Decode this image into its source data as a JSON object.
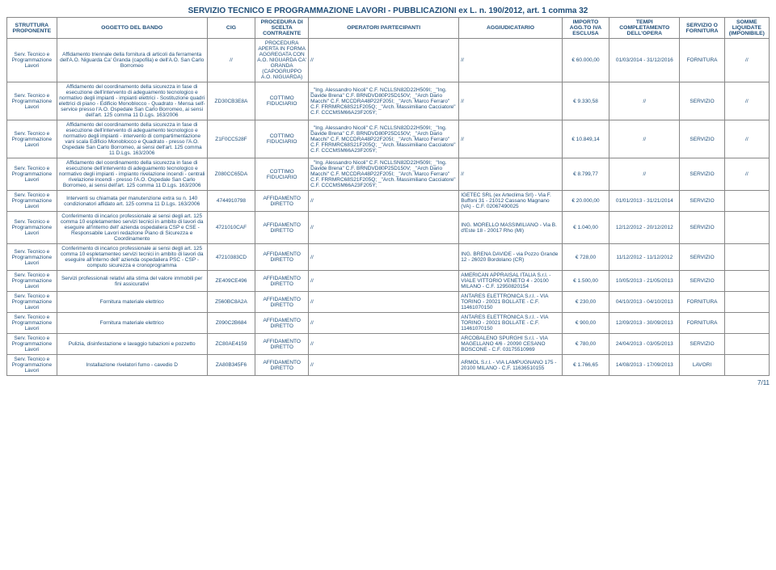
{
  "title": "SERVIZIO TECNICO E PROGRAMMAZIONE LAVORI - PUBBLICAZIONI ex L. n. 190/2012, art. 1 comma 32",
  "headers": {
    "struttura": "STRUTTURA PROPONENTE",
    "oggetto": "OGGETTO DEL BANDO",
    "cig": "CIG",
    "proc": "PROCEDURA DI SCELTA CONTRAENTE",
    "oper": "OPERATORI PARTECIPANTI",
    "agg": "AGGIUDICATARIO",
    "importo": "IMPORTO AGG.TO IVA ESCLUSA",
    "tempi": "TEMPI COMPLETAMENTO DELL'OPERA",
    "servizio": "SERVIZIO O FORNITURA",
    "somme": "SOMME LIQUIDATE (IMPONIBILE)"
  },
  "struttura_common": "Serv. Tecnico e Programmazione Lavori",
  "rows": [
    {
      "oggetto": "Affidamento triennale della fornitura di articoli da ferramenta dell'A.O. Niguarda Ca' Granda (capofila) e dell'A.O. San Carlo Borromeo",
      "cig": "//",
      "proc": "PROCEDURA APERTA IN FORMA AGGREGATA CON A.O. NIGUARDA CA' GRANDA (CAPOGRUPPO A.O. NIGUARDA)",
      "oper": "//",
      "agg": "//",
      "importo": "€ 60.000,00",
      "tempi": "01/03/2014 - 31/12/2016",
      "servizio": "FORNITURA",
      "somme": "//"
    },
    {
      "oggetto": "Affidamento del coordinamento della sicurezza in fase di esecuzione dell'intervento di adeguamento tecnologico e normativo degli impianti - impianti elettrici - Sostituzione quadri elettrici di piano - Edificio Monoblocco - Quadrato - Mensa self-service presso l'A.O. Ospedale San Carlo Borromeo, ai sensi dell'art. 125 comma 11 D.Lgs. 163/2006",
      "cig": "ZD30CB3E8A",
      "proc": "COTTIMO FIDUCIARIO",
      "oper": "_\"Ing. Alessandro  Nicoli\" C.F. NCLLSN82D22H509I; _\"Ing. Davide Brena\" C.F. BRNDVD80P25D150V; _\"Arch Dario Macchi\" C.F. MCCDRA48P22F205I; _\"Arch. Marco Ferraro\" C.F. FRRMRC68S21F205Q; _\"Arch. Massimiliano Cacciatore\" C.F. CCCMSM66A23F205Y;",
      "agg": "//",
      "importo": "€ 9.330,58",
      "tempi": "//",
      "servizio": "SERVIZIO",
      "somme": "//"
    },
    {
      "oggetto": "Affidamento del coordinamento della sicurezza in fase di esecuzione dell'intervento di adeguamento tecnologico e normativo degli impianti - intervento di compartimentazione vani scala Edificio Monoblocco e Quadrato - presso l'A.O. Ospedale San Carlo Borromeo, ai sensi dell'art. 125 comma 11 D.Lgs. 163/2006",
      "cig": "Z1F0CC528F",
      "proc": "COTTIMO FIDUCIARIO",
      "oper": "_\"Ing. Alessandro  Nicoli\" C.F. NCLLSN82D22H509I; _\"Ing. Davide Brena\" C.F. BRNDVD80P25D150V; _\"Arch Dario Macchi\" C.F. MCCDRA48P22F205I; _\"Arch. Marco Ferraro\" C.F. FRRMRC68S21F205Q; _\"Arch. Massimiliano Cacciatore\" C.F. CCCMSM66A23F205Y;",
      "agg": "//",
      "importo": "€ 10.849,14",
      "tempi": "//",
      "servizio": "SERVIZIO",
      "somme": "//"
    },
    {
      "oggetto": "Affidamento del coordinamento della sicurezza in fase di esecuzione dell'intervento di adeguamento tecnologico e normativo degli impianti - impianto rivelazione incendi - centrali rivelazione incendi - presso l'A.O. Ospedale San Carlo Borromeo, ai sensi dell'art. 125 comma 11 D.Lgs. 163/2006",
      "cig": "Z080CC65DA",
      "proc": "COTTIMO FIDUCIARIO",
      "oper": "_\"Ing. Alessandro  Nicoli\" C.F. NCLLSN82D22H509I; _\"Ing. Davide Brena\" C.F. BRNDVD80P25D150V; _\"Arch Dario Macchi\" C.F. MCCDRA48P22F205I; _\"Arch. Marco Ferraro\" C.F. FRRMRC68S21F205Q; _\"Arch. Massimiliano Cacciatore\" C.F. CCCMSM66A23F205Y;",
      "agg": "//",
      "importo": "€ 8.799,77",
      "tempi": "//",
      "servizio": "SERVIZIO",
      "somme": "//"
    },
    {
      "oggetto": "Interventi su chiamata per manutenzione extra su n. 140 condizionatori affidato art. 125 comma 11 D.Lgs. 163/2006",
      "cig": "4744910798",
      "proc": "AFFIDAMENTO DIRETTO",
      "oper": "//",
      "agg": "IGETEC SRL (ex Arteclima Srl) - Via F. Buffoni 31 - 21012 Cassano Magnano (VA) - C.F. 02067490025",
      "importo": "€ 20.000,00",
      "tempi": "01/01/2013 - 31/21/2014",
      "servizio": "SERVIZIO",
      "somme": ""
    },
    {
      "oggetto": "Conferimento di incarico professionale ai sensi degli art. 125 comma 10 espletamenteo servizi tecnici in ambito di lavori da eseguire all'interno dell' azienda ospedaliera CSP e CSE - Responsabile Lavori redazione Piano di Sicurezza e Coordinamento",
      "cig": "4721010CAF",
      "proc": "AFFIDAMENTO DIRETTO",
      "oper": "//",
      "agg": "ING. MORELLO MASSIMILIANO - Via B. d'Este 18 - 20017 Rho (MI)",
      "importo": "€ 1.040,00",
      "tempi": "12/12/2012 - 20/12/2012",
      "servizio": "SERVIZIO",
      "somme": ""
    },
    {
      "oggetto": "Conferimento di incarico professionale ai sensi degli art. 125 comma 10 espletamenteo servizi tecnici in ambito di lavori da eseguire all'interno dell' azienda ospedaliera PSC - CSP - computo sicurezza e cronoprogramma",
      "cig": "47210383CD",
      "proc": "AFFIDAMENTO DIRETTO",
      "oper": "//",
      "agg": "ING. BRENA DAVIDE - via Pozzo Grande 12 - 26020 Bordolano (CR)",
      "importo": "€ 728,00",
      "tempi": "11/12/2012 - 11/12/2012",
      "servizio": "SERVIZIO",
      "somme": ""
    },
    {
      "oggetto": "Servizi professionali relativi alla stima del valore immobili per fini assicurativi",
      "cig": "ZE409CE496",
      "proc": "AFFIDAMENTO DIRETTO",
      "oper": "//",
      "agg": "AMERICAN APPRAISAL ITALIA S.r.l.  - VIALE VITTORIO VENETO 4 - 20100 MILANO - C.F. 12950820154",
      "importo": "€ 1.500,00",
      "tempi": "10/05/2013 - 21/05/2013",
      "servizio": "SERVIZIO",
      "somme": ""
    },
    {
      "oggetto": "Fornitura materiale elettrico",
      "cig": "Z560BC8A2A",
      "proc": "AFFIDAMENTO DIRETTO",
      "oper": "//",
      "agg": "ANTARES ELETTRONICA S.r.l. - VIA TORINO - 20021 BOLLATE - C.F. 11461070150",
      "importo": "€ 230,00",
      "tempi": "04/10/2013 - 04/10/2013",
      "servizio": "FORNITURA",
      "somme": ""
    },
    {
      "oggetto": "Fornitura materiale elettrico",
      "cig": "Z090C2B684",
      "proc": "AFFIDAMENTO DIRETTO",
      "oper": "//",
      "agg": "ANTARES ELETTRONICA S.r.l. - VIA TORINO - 20021 BOLLATE - C.F. 11461070150",
      "importo": "€ 900,00",
      "tempi": "12/09/2013 - 30/09/2013",
      "servizio": "FORNITURA",
      "somme": ""
    },
    {
      "oggetto": "Pulizia, disinfestazione e lavaggio tubazioni e pozzetto",
      "cig": "ZC80AE4159",
      "proc": "AFFIDAMENTO DIRETTO",
      "oper": "//",
      "agg": "ARCOBALENO SPURGHI S.r.l. - VIA MAGELLANO 4/6 - 20090 CESANO BOSCONE - C.F. 03175510969",
      "importo": "€ 780,00",
      "tempi": "24/04/2013 - 03/05/2013",
      "servizio": "SERVIZIO",
      "somme": ""
    },
    {
      "oggetto": "Installazione rivelatori fumo - cavedio D",
      "cig": "ZA80B345F6",
      "proc": "AFFIDAMENTO DIRETTO",
      "oper": "//",
      "agg": "ARMOL S.r.l. - VIA LAMPUGNANO 175 - 20100 MILANO - C.F. 11636510155",
      "importo": "€ 1.766,65",
      "tempi": "14/08/2013 - 17/09/2013",
      "servizio": "LAVORI",
      "somme": ""
    }
  ],
  "pagenum": "7/11"
}
